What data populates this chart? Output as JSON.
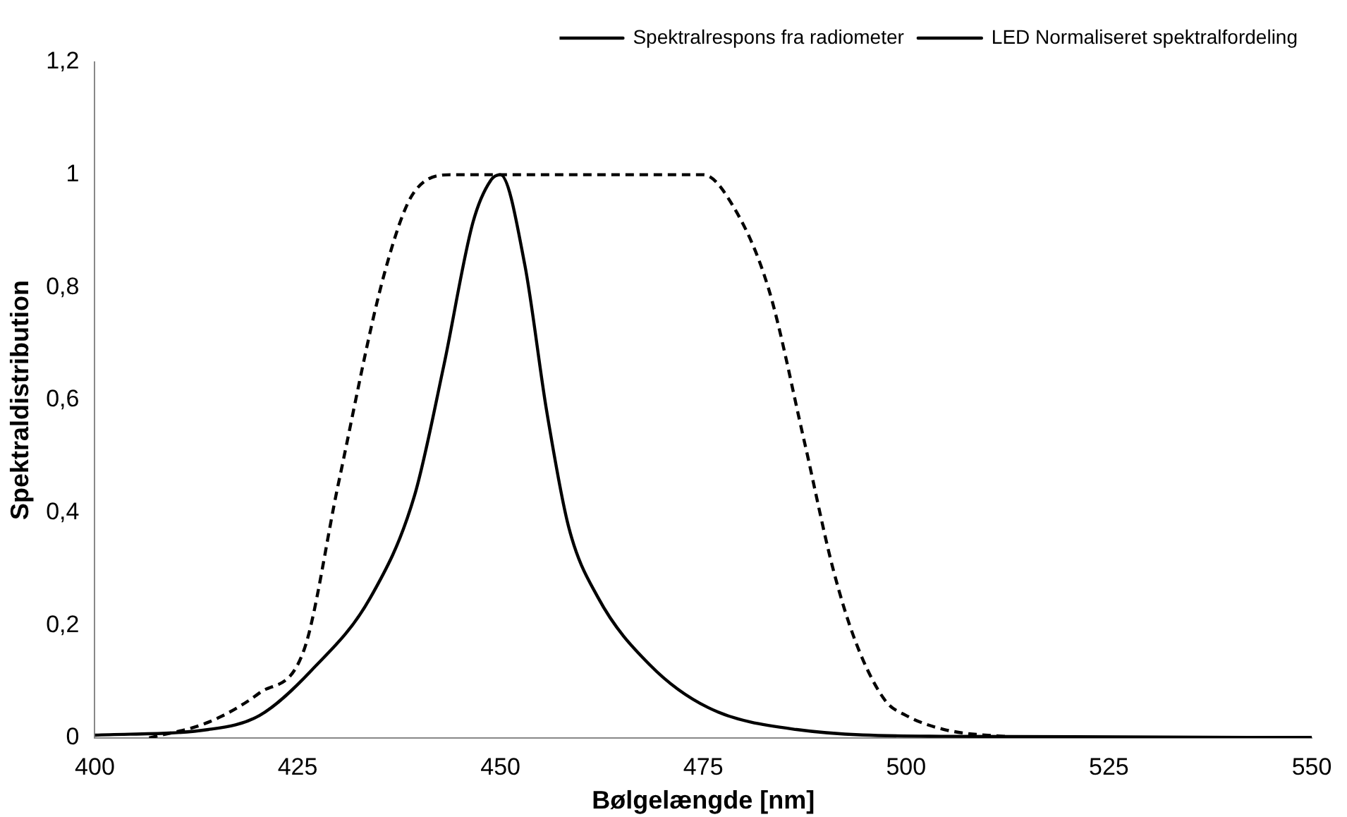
{
  "chart_data": {
    "type": "line",
    "xlabel": "Bølgelængde [nm]",
    "ylabel": "Spektraldistribution",
    "xlim": [
      400,
      550
    ],
    "xticks": [
      400,
      425,
      450,
      475,
      500,
      525,
      550
    ],
    "ylim": [
      0,
      1.2
    ],
    "yticks": [
      0,
      {
        "value": 0.2,
        "label": "0,2"
      },
      {
        "value": 0.4,
        "label": "0,4"
      },
      {
        "value": 0.6,
        "label": "0,6"
      },
      {
        "value": 0.8,
        "label": "0,8"
      },
      1,
      {
        "value": 1.2,
        "label": "1,2"
      }
    ],
    "grid": false,
    "legend": "top right",
    "marker": "none",
    "series": [
      {
        "name": "Spektralrespons fra radiometer",
        "color": "#000000",
        "line_style": "dashed",
        "x": [
          406.7,
          414,
          420.3,
          425.8,
          430,
          435.7,
          439.4,
          444,
          450,
          460,
          470,
          475,
          478,
          483,
          487.4,
          491,
          493.8,
          497.4,
          500,
          504.7,
          512,
          520,
          550
        ],
        "values": [
          0,
          0.028,
          0.08,
          0.157,
          0.45,
          0.825,
          0.97,
          1,
          1,
          1,
          1,
          1,
          0.96,
          0.8,
          0.53,
          0.3,
          0.17,
          0.067,
          0.04,
          0.015,
          0.003,
          0,
          0
        ]
      },
      {
        "name": "LED Normaliseret spektralfordeling",
        "color": "#000000",
        "line_style": "solid",
        "x": [
          400,
          414,
          420.3,
          426.7,
          434,
          439.4,
          443,
          446.6,
          448.8,
          450,
          453,
          455.7,
          458.4,
          462,
          468.4,
          475.6,
          486.5,
          504.7,
          550
        ],
        "values": [
          0.005,
          0.015,
          0.04,
          0.12,
          0.25,
          0.43,
          0.66,
          0.915,
          0.99,
          1,
          0.84,
          0.58,
          0.375,
          0.25,
          0.13,
          0.054,
          0.015,
          0.003,
          0.001
        ]
      }
    ]
  }
}
